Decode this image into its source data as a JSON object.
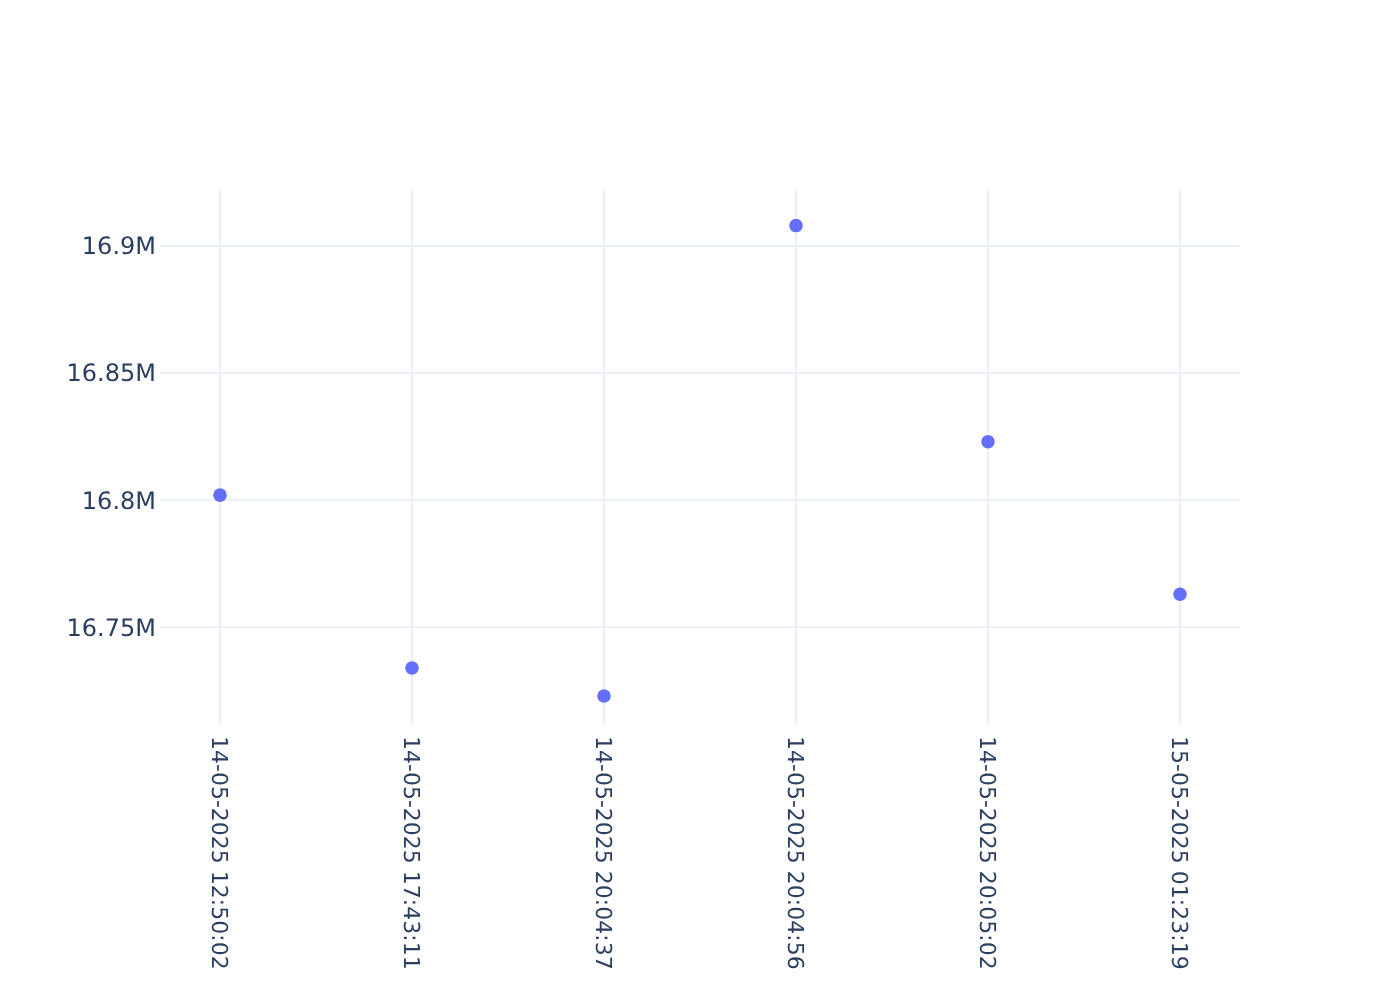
{
  "chart_data": {
    "type": "scatter",
    "categories": [
      "14-05-2025 12:50:02",
      "14-05-2025 17:43:11",
      "14-05-2025 20:04:37",
      "14-05-2025 20:04:56",
      "14-05-2025 20:05:02",
      "15-05-2025 01:23:19"
    ],
    "values": [
      16802000,
      16734000,
      16723000,
      16908000,
      16823000,
      16763000
    ],
    "color": "#636efa",
    "marker": "circle",
    "grid": true,
    "ylim": [
      16712000,
      16922000
    ],
    "yticks": [
      {
        "value": 16750000,
        "label": "16.75M"
      },
      {
        "value": 16800000,
        "label": "16.8M"
      },
      {
        "value": 16850000,
        "label": "16.85M"
      },
      {
        "value": 16900000,
        "label": "16.9M"
      }
    ]
  }
}
